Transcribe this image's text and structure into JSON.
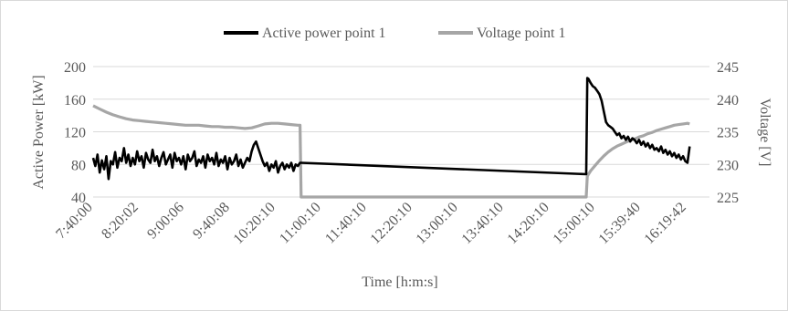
{
  "chart_data": {
    "type": "line",
    "title": "",
    "xlabel": "Time [h:m:s]",
    "ylabel": "Active Power [kW]",
    "y2label": "Voltage [V]",
    "x_unit": "minutes since 7:40:00",
    "xlim": [
      0,
      560
    ],
    "ylim": [
      40,
      200
    ],
    "y2lim": [
      225,
      245
    ],
    "y_ticks": [
      "40",
      "80",
      "120",
      "160",
      "200"
    ],
    "y2_ticks": [
      "225",
      "230",
      "235",
      "240",
      "245"
    ],
    "x_tick_labels": [
      "7:40:00",
      "8:20:02",
      "9:00:06",
      "9:40:08",
      "10:20:10",
      "11:00:10",
      "11:40:10",
      "12:20:10",
      "13:00:10",
      "13:40:10",
      "14:20:10",
      "15:00:10",
      "15:39:40",
      "16:19:42"
    ],
    "gridlines": "horizontal",
    "legend_position": "top",
    "series": [
      {
        "name": "Active power point 1",
        "color": "#000000",
        "axis": "left",
        "x": [
          0,
          2,
          4,
          6,
          8,
          10,
          12,
          14,
          16,
          18,
          20,
          22,
          24,
          26,
          28,
          30,
          32,
          34,
          36,
          38,
          40,
          42,
          44,
          46,
          48,
          50,
          52,
          54,
          56,
          58,
          60,
          62,
          64,
          66,
          68,
          70,
          72,
          74,
          76,
          78,
          80,
          82,
          84,
          86,
          88,
          90,
          92,
          94,
          96,
          98,
          100,
          102,
          104,
          106,
          108,
          110,
          112,
          114,
          116,
          118,
          120,
          122,
          124,
          126,
          128,
          130,
          132,
          134,
          136,
          138,
          140,
          142,
          144,
          146,
          148,
          150,
          152,
          154,
          156,
          158,
          160,
          162,
          164,
          166,
          168,
          170,
          172,
          174,
          176,
          178,
          180,
          182,
          184,
          186,
          188,
          189,
          448,
          449,
          450,
          452,
          454,
          456,
          458,
          460,
          462,
          464,
          466,
          468,
          470,
          472,
          474,
          476,
          478,
          480,
          482,
          484,
          486,
          488,
          490,
          492,
          494,
          496,
          498,
          500,
          502,
          504,
          506,
          508,
          510,
          512,
          514,
          516,
          518,
          520,
          522,
          524,
          526,
          528,
          530,
          532,
          534,
          536,
          538,
          540,
          542
        ],
        "values": [
          88,
          78,
          92,
          70,
          85,
          74,
          90,
          62,
          84,
          80,
          95,
          76,
          88,
          84,
          100,
          82,
          92,
          78,
          88,
          80,
          96,
          84,
          90,
          76,
          94,
          86,
          82,
          98,
          84,
          90,
          78,
          88,
          95,
          80,
          86,
          92,
          76,
          94,
          84,
          88,
          80,
          90,
          74,
          92,
          84,
          88,
          96,
          78,
          86,
          82,
          90,
          76,
          92,
          84,
          88,
          80,
          94,
          78,
          86,
          82,
          90,
          74,
          88,
          80,
          84,
          92,
          78,
          86,
          76,
          82,
          88,
          84,
          96,
          104,
          108,
          100,
          92,
          84,
          78,
          82,
          72,
          80,
          76,
          84,
          70,
          78,
          82,
          74,
          80,
          76,
          82,
          72,
          80,
          78,
          82,
          82,
          68,
          186,
          185,
          180,
          176,
          174,
          170,
          166,
          158,
          145,
          132,
          128,
          126,
          124,
          120,
          116,
          118,
          112,
          115,
          110,
          114,
          108,
          112,
          110,
          106,
          110,
          104,
          108,
          102,
          106,
          100,
          104,
          98,
          100,
          96,
          102,
          94,
          98,
          92,
          96,
          90,
          94,
          88,
          92,
          86,
          90,
          84,
          82,
          102
        ]
      },
      {
        "name": "Voltage point 1",
        "color": "#a6a6a6",
        "axis": "right",
        "x": [
          0,
          6,
          12,
          18,
          24,
          30,
          36,
          42,
          48,
          54,
          60,
          66,
          72,
          78,
          84,
          90,
          96,
          102,
          108,
          114,
          120,
          126,
          132,
          138,
          144,
          150,
          156,
          162,
          168,
          174,
          180,
          186,
          188,
          189,
          448,
          449,
          452,
          456,
          460,
          464,
          468,
          472,
          476,
          480,
          484,
          488,
          492,
          496,
          500,
          504,
          508,
          512,
          516,
          520,
          524,
          528,
          532,
          536,
          540,
          542
        ],
        "values": [
          239,
          238.5,
          238,
          237.6,
          237.3,
          237,
          236.8,
          236.7,
          236.6,
          236.5,
          236.4,
          236.3,
          236.2,
          236.1,
          236,
          236,
          236,
          235.9,
          235.8,
          235.8,
          235.7,
          235.7,
          235.6,
          235.5,
          235.6,
          235.9,
          236.2,
          236.3,
          236.3,
          236.2,
          236.1,
          236,
          236,
          225,
          225,
          228.2,
          229,
          229.8,
          230.6,
          231.3,
          231.9,
          232.4,
          232.8,
          233.1,
          233.4,
          233.7,
          233.9,
          234.2,
          234.4,
          234.7,
          234.9,
          235.2,
          235.4,
          235.6,
          235.8,
          236,
          236.1,
          236.2,
          236.3,
          236.2
        ]
      }
    ]
  }
}
